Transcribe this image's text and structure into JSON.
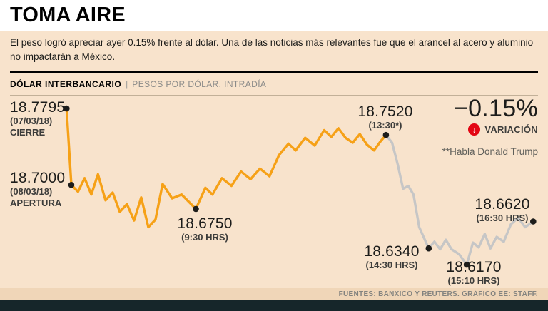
{
  "header": {
    "title": "TOMA AIRE",
    "subtitle": "El peso logró apreciar ayer 0.15% frente al dólar. Una de las noticias más relevantes fue que el arancel al acero y aluminio no impactarán a México."
  },
  "section": {
    "label_bold": "DÓLAR INTERBANCARIO",
    "separator": "|",
    "label_light": "PESOS POR DÓLAR, INTRADÍA"
  },
  "variation": {
    "value": "−0.15%",
    "label": "VARIACIÓN",
    "icon": "arrow-down-circle",
    "icon_color": "#e30613",
    "arrow_glyph": "↓"
  },
  "trump_note": "**Habla Donald Trump",
  "labels": {
    "cierre": {
      "value": "18.7795",
      "date": "(07/03/18)",
      "caption": "CIERRE"
    },
    "apertura": {
      "value": "18.7000",
      "date": "(08/03/18)",
      "caption": "APERTURA"
    },
    "h930": {
      "value": "18.6750",
      "caption": "(9:30 HRS)"
    },
    "h1330": {
      "value": "18.7520",
      "caption": "(13:30*)"
    },
    "h1430": {
      "value": "18.6340",
      "caption": "(14:30 HRS)"
    },
    "h1510": {
      "value": "18.6170",
      "caption": "(15:10 HRS)"
    },
    "h1630": {
      "value": "18.6620",
      "caption": "(16:30 HRS)"
    }
  },
  "footer": {
    "source": "FUENTES: BANXICO Y REUTERS. GRÁFICO EE: STAFF."
  },
  "chart_data": {
    "type": "line",
    "title": "Dólar interbancario, pesos por dólar, intradía",
    "ylim": [
      18.6,
      18.79
    ],
    "marker_color": "#1d1d1b",
    "annotations": [
      "**Habla Donald Trump (a las 13:30)"
    ],
    "key_points": {
      "cierre_07_03_18": 18.7795,
      "apertura_08_03_18": 18.7,
      "h_0930": 18.675,
      "h_1330": 18.752,
      "h_1430": 18.634,
      "h_1510": 18.617,
      "h_1630": 18.662
    },
    "series": [
      {
        "name": "antes-de-declaraciones",
        "color": "#f6a117",
        "points": [
          [
            0.8,
            18.7795
          ],
          [
            1.8,
            18.7
          ],
          [
            3.2,
            18.693
          ],
          [
            4.6,
            18.707
          ],
          [
            6.0,
            18.69
          ],
          [
            7.4,
            18.711
          ],
          [
            9.0,
            18.684
          ],
          [
            10.5,
            18.692
          ],
          [
            12.0,
            18.672
          ],
          [
            13.5,
            18.68
          ],
          [
            15.0,
            18.663
          ],
          [
            16.5,
            18.687
          ],
          [
            18.0,
            18.656
          ],
          [
            19.5,
            18.664
          ],
          [
            21.0,
            18.701
          ],
          [
            23.0,
            18.686
          ],
          [
            25.0,
            18.69
          ],
          [
            28.0,
            18.675
          ],
          [
            30.0,
            18.697
          ],
          [
            31.5,
            18.69
          ],
          [
            33.5,
            18.707
          ],
          [
            35.5,
            18.699
          ],
          [
            37.5,
            18.714
          ],
          [
            39.5,
            18.706
          ],
          [
            41.5,
            18.717
          ],
          [
            43.5,
            18.709
          ],
          [
            45.5,
            18.731
          ],
          [
            47.5,
            18.743
          ],
          [
            49.0,
            18.736
          ],
          [
            51.0,
            18.749
          ],
          [
            53.0,
            18.741
          ],
          [
            55.0,
            18.757
          ],
          [
            56.5,
            18.75
          ],
          [
            58.0,
            18.759
          ],
          [
            59.5,
            18.749
          ],
          [
            61.0,
            18.744
          ],
          [
            62.5,
            18.753
          ],
          [
            64.0,
            18.742
          ],
          [
            65.5,
            18.736
          ],
          [
            66.8,
            18.745
          ],
          [
            68.0,
            18.752
          ]
        ]
      },
      {
        "name": "despues-de-declaraciones",
        "color": "#c6c6c6",
        "points": [
          [
            68.0,
            18.752
          ],
          [
            69.3,
            18.744
          ],
          [
            70.5,
            18.721
          ],
          [
            71.6,
            18.696
          ],
          [
            72.7,
            18.699
          ],
          [
            73.8,
            18.69
          ],
          [
            75.0,
            18.656
          ],
          [
            77.0,
            18.634
          ],
          [
            78.2,
            18.641
          ],
          [
            79.4,
            18.633
          ],
          [
            80.6,
            18.643
          ],
          [
            81.8,
            18.633
          ],
          [
            83.4,
            18.628
          ],
          [
            85.0,
            18.617
          ],
          [
            86.3,
            18.64
          ],
          [
            87.5,
            18.635
          ],
          [
            88.8,
            18.649
          ],
          [
            90.0,
            18.634
          ],
          [
            91.3,
            18.646
          ],
          [
            92.8,
            18.641
          ],
          [
            94.3,
            18.659
          ],
          [
            95.8,
            18.666
          ],
          [
            97.3,
            18.656
          ],
          [
            99.0,
            18.662
          ]
        ]
      }
    ],
    "markers": [
      {
        "x": 0.8,
        "value": 18.7795,
        "label": "cierre"
      },
      {
        "x": 1.8,
        "value": 18.7,
        "label": "apertura"
      },
      {
        "x": 28.0,
        "value": 18.675,
        "label": "0930"
      },
      {
        "x": 68.0,
        "value": 18.752,
        "label": "1330"
      },
      {
        "x": 77.0,
        "value": 18.634,
        "label": "1430"
      },
      {
        "x": 85.0,
        "value": 18.617,
        "label": "1510"
      },
      {
        "x": 99.0,
        "value": 18.662,
        "label": "1630"
      }
    ]
  }
}
